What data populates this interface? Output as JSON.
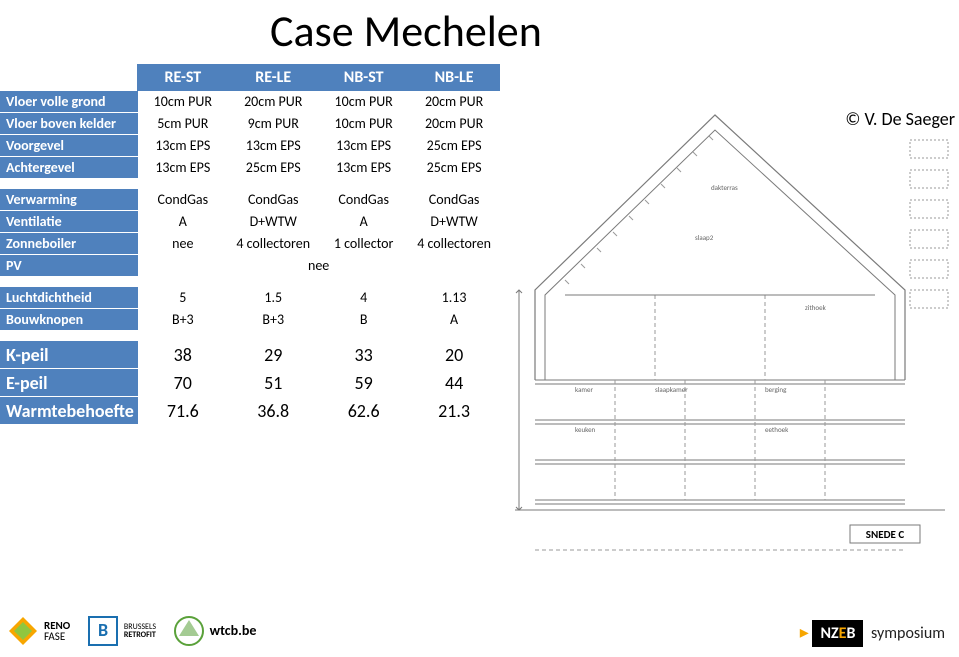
{
  "title": "Case Mechelen",
  "credit": "© V. De Saeger",
  "columns": [
    "RE-ST",
    "RE-LE",
    "NB-ST",
    "NB-LE"
  ],
  "sections": [
    {
      "rows": [
        {
          "label": "Vloer volle grond",
          "cells": [
            "10cm PUR",
            "20cm PUR",
            "10cm PUR",
            "20cm PUR"
          ]
        },
        {
          "label": "Vloer boven kelder",
          "cells": [
            "5cm PUR",
            "9cm PUR",
            "10cm PUR",
            "20cm PUR"
          ]
        },
        {
          "label": "Voorgevel",
          "cells": [
            "13cm EPS",
            "13cm EPS",
            "13cm EPS",
            "25cm EPS"
          ]
        },
        {
          "label": "Achtergevel",
          "cells": [
            "13cm EPS",
            "25cm EPS",
            "13cm EPS",
            "25cm EPS"
          ]
        }
      ]
    },
    {
      "rows": [
        {
          "label": "Verwarming",
          "cells": [
            "CondGas",
            "CondGas",
            "CondGas",
            "CondGas"
          ]
        },
        {
          "label": "Ventilatie",
          "cells": [
            "A",
            "D+WTW",
            "A",
            "D+WTW"
          ]
        },
        {
          "label": "Zonneboiler",
          "cells": [
            "nee",
            "4 collectoren",
            "1 collector",
            "4 collectoren"
          ]
        },
        {
          "label": "PV",
          "cells": [
            "",
            "",
            "nee",
            ""
          ],
          "span_all": "nee"
        }
      ]
    },
    {
      "rows": [
        {
          "label": "Luchtdichtheid",
          "cells": [
            "5",
            "1.5",
            "4",
            "1.13"
          ]
        },
        {
          "label": "Bouwknopen",
          "cells": [
            "B+3",
            "B+3",
            "B",
            "A"
          ]
        }
      ]
    },
    {
      "big": true,
      "rows": [
        {
          "label": "K-peil",
          "cells": [
            "38",
            "29",
            "33",
            "20"
          ]
        },
        {
          "label": "E-peil",
          "cells": [
            "70",
            "51",
            "59",
            "44"
          ]
        },
        {
          "label": "Warmtebehoefte",
          "cells": [
            "71.6",
            "36.8",
            "62.6",
            "21.3"
          ]
        }
      ]
    }
  ],
  "logos": {
    "renofase": {
      "line1": "RENO",
      "line2": "FASE"
    },
    "brussels": {
      "line1": "BRUSSELS",
      "line2": "RETROFIT"
    },
    "wtcb": "wtcb.be",
    "nzeb": {
      "part1": "NZ",
      "e": "E",
      "part2": "B",
      "suffix": "symposium"
    }
  },
  "drawing": {
    "stroke": "#7a7a7a",
    "dash": "#999",
    "text": "#666",
    "label_snede": "SNEDE C"
  }
}
